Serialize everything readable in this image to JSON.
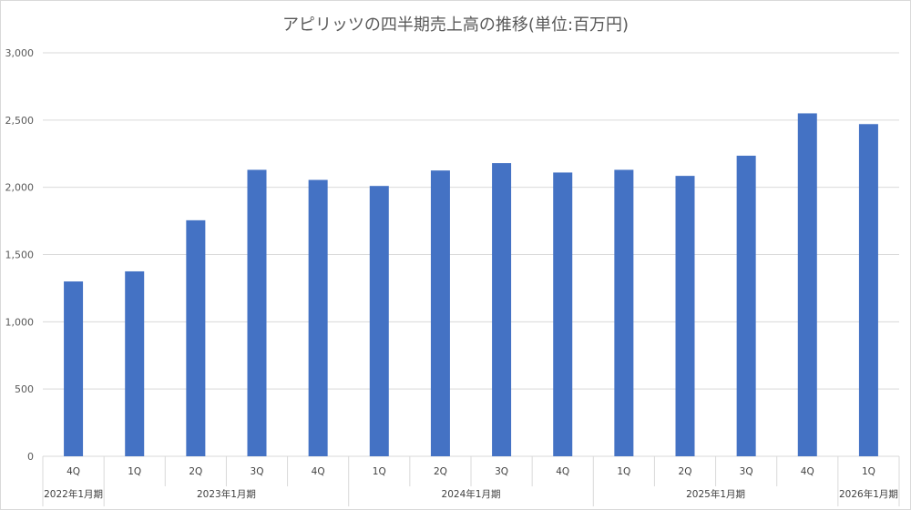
{
  "chart_data": {
    "type": "bar",
    "title": "アピリッツの四半期売上高の推移(単位:百万円)",
    "xlabel": "",
    "ylabel": "",
    "ylim": [
      0,
      3000
    ],
    "y_ticks": [
      "0",
      "500",
      "1,000",
      "1,500",
      "2,000",
      "2,500",
      "3,000"
    ],
    "y_tick_values": [
      0,
      500,
      1000,
      1500,
      2000,
      2500,
      3000
    ],
    "grid": true,
    "legend": "none",
    "bar_color": "#4472c4",
    "categories": [
      "4Q",
      "1Q",
      "2Q",
      "3Q",
      "4Q",
      "1Q",
      "2Q",
      "3Q",
      "4Q",
      "1Q",
      "2Q",
      "3Q",
      "4Q",
      "1Q"
    ],
    "periods": [
      {
        "label": "2022年1月期",
        "count": 1
      },
      {
        "label": "2023年1月期",
        "count": 4
      },
      {
        "label": "2024年1月期",
        "count": 4
      },
      {
        "label": "2025年1月期",
        "count": 4
      },
      {
        "label": "2026年1月期",
        "count": 1
      }
    ],
    "series": [
      {
        "values": [
          1300,
          1375,
          1755,
          2130,
          2055,
          2010,
          2125,
          2180,
          2110,
          2130,
          2085,
          2235,
          2550,
          2470
        ]
      }
    ]
  }
}
